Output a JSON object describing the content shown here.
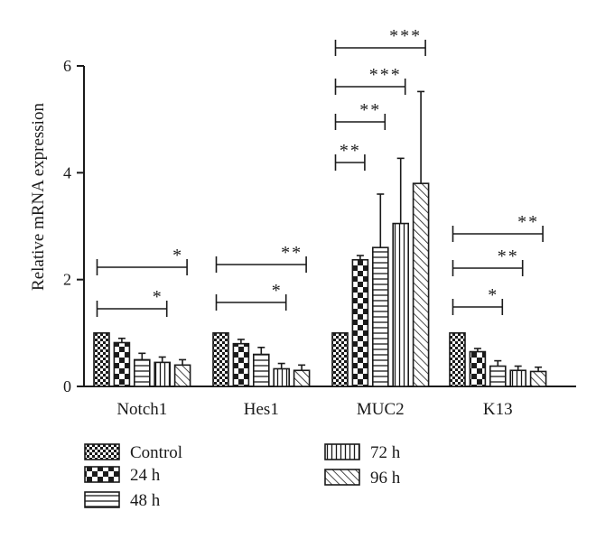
{
  "chart_data": {
    "type": "bar",
    "ylabel": "Relative mRNA expression",
    "xlabel": "",
    "ylim": [
      0,
      6
    ],
    "yticks": [
      "0",
      "2",
      "4",
      "6"
    ],
    "categories": [
      "Notch1",
      "Hes1",
      "MUC2",
      "K13"
    ],
    "series": [
      {
        "name": "Control",
        "pattern": "checker-small",
        "values": [
          1.0,
          1.0,
          1.0,
          1.0
        ],
        "errors": [
          0,
          0,
          0,
          0
        ]
      },
      {
        "name": "24 h",
        "pattern": "checker-large",
        "values": [
          0.82,
          0.8,
          2.37,
          0.65
        ],
        "errors": [
          0.08,
          0.08,
          0.08,
          0.06
        ]
      },
      {
        "name": "48 h",
        "pattern": "horizontal-lines",
        "values": [
          0.5,
          0.6,
          2.6,
          0.38
        ],
        "errors": [
          0.12,
          0.13,
          1.0,
          0.1
        ]
      },
      {
        "name": "72 h",
        "pattern": "vertical-lines",
        "values": [
          0.45,
          0.33,
          3.05,
          0.3
        ],
        "errors": [
          0.1,
          0.1,
          1.22,
          0.08
        ]
      },
      {
        "name": "96 h",
        "pattern": "diagonal-lines",
        "values": [
          0.4,
          0.3,
          3.8,
          0.28
        ],
        "errors": [
          0.1,
          0.1,
          1.72,
          0.08
        ]
      }
    ],
    "significance": [
      {
        "category": 0,
        "to_series": 3,
        "text": "*"
      },
      {
        "category": 0,
        "to_series": 4,
        "text": "*"
      },
      {
        "category": 1,
        "to_series": 3,
        "text": "*"
      },
      {
        "category": 1,
        "to_series": 4,
        "text": "**"
      },
      {
        "category": 2,
        "to_series": 1,
        "text": "**"
      },
      {
        "category": 2,
        "to_series": 2,
        "text": "**"
      },
      {
        "category": 2,
        "to_series": 3,
        "text": "***"
      },
      {
        "category": 2,
        "to_series": 4,
        "text": "***"
      },
      {
        "category": 3,
        "to_series": 2,
        "text": "*"
      },
      {
        "category": 3,
        "to_series": 3,
        "text": "**"
      },
      {
        "category": 3,
        "to_series": 4,
        "text": "**"
      }
    ],
    "legend_position": "bottom",
    "grid": false
  }
}
